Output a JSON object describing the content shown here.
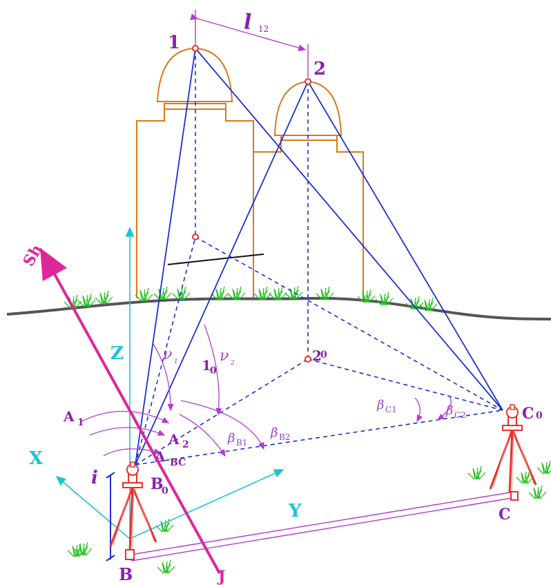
{
  "labels": {
    "point1": "1",
    "point2": "2",
    "base_l": "l",
    "base_l_sub": "12",
    "proj1": "1",
    "proj1_sub": "0",
    "proj2": "2",
    "proj2_sub": "0",
    "axis_z": "Z",
    "axis_x": "X",
    "axis_y": "Y",
    "axis_sh": "Sh",
    "axis_j": "J",
    "station_b": "B",
    "station_b0": "B",
    "station_b0_sub": "0",
    "station_c": "C",
    "station_c0": "C",
    "station_c0_sub": "0",
    "height_i": "i",
    "az1": "A",
    "az1_sub": "1",
    "az2": "A",
    "az2_sub": "2",
    "azbc": "A",
    "azbc_sub": "BC",
    "nu": "ν",
    "nu_sub": "1",
    "nu2": "ν",
    "nu2_sub": "2",
    "beta": "β",
    "beta_b1_sub": "B1",
    "beta_b2_sub": "B2",
    "beta_c1_sub": "C1",
    "beta_c2_sub": "C2"
  },
  "colors": {
    "building": "#d77a1a",
    "sight": "#1a2fd6",
    "measure": "#b43ad0",
    "axis": "#19c4d4",
    "sh_axis": "#e0249a",
    "ground": "#555555",
    "tripod": "#e8302a",
    "grass": "#22c31e"
  },
  "icons": {
    "tripod_b": "theodolite-on-tripod-icon",
    "tripod_c": "theodolite-on-tripod-icon",
    "grass": "grass-tuft-icon"
  }
}
